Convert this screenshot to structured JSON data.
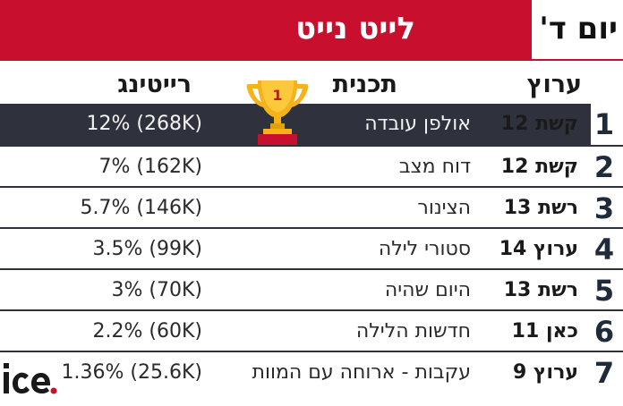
{
  "header": {
    "title": "לייט נייט",
    "day": "יום ד'"
  },
  "columns": {
    "channel": "ערוץ",
    "program": "תכנית",
    "rating": "רייטינג"
  },
  "trophy": {
    "number": "1"
  },
  "rows": [
    {
      "rank": "1",
      "channel": "קשת 12",
      "program": "אולפן עובדה",
      "rating": "12% (268K)"
    },
    {
      "rank": "2",
      "channel": "קשת 12",
      "program": "דוח מצב",
      "rating": "7% (162K)"
    },
    {
      "rank": "3",
      "channel": "רשת 13",
      "program": "הצינור",
      "rating": "5.7% (146K)"
    },
    {
      "rank": "4",
      "channel": "ערוץ 14",
      "program": "סטורי לילה",
      "rating": "3.5% (99K)"
    },
    {
      "rank": "5",
      "channel": "רשת 13",
      "program": "היום שהיה",
      "rating": "3% (70K)"
    },
    {
      "rank": "6",
      "channel": "כאן 11",
      "program": "חדשות הלילה",
      "rating": "2.2% (60K)"
    },
    {
      "rank": "7",
      "channel": "ערוץ 9",
      "program": "עקבות - ארוחה עם המוות",
      "rating": "1.36% (25.6K)"
    }
  ],
  "logo": {
    "text": "ice.",
    "accent_color": "#c8102e"
  },
  "colors": {
    "red": "#c8102e",
    "dark": "#2f323c",
    "gold": "#f5b21b"
  }
}
